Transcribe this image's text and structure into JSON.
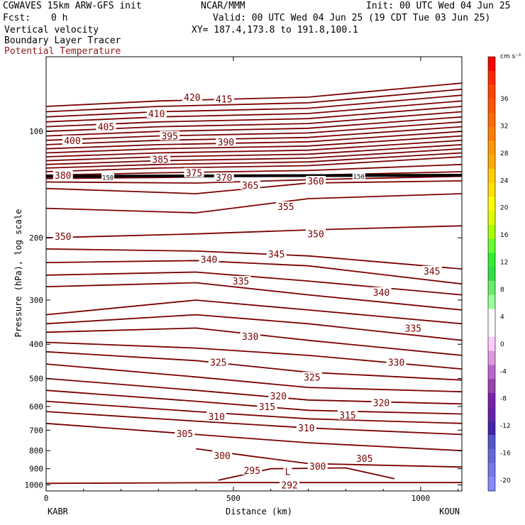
{
  "header": {
    "model": "CGWAVES 15km ARW-GFS init",
    "org": "NCAR/MMM",
    "init": "Init: 00 UTC Wed 04 Jun 25",
    "fcst_label": "Fcst:",
    "fcst_value": "0 h",
    "valid": "Valid: 00 UTC Wed 04 Jun 25 (19 CDT Tue 03 Jun 25)",
    "field1": "Vertical velocity",
    "xy": "XY= 187.4,173.8 to 191.8,100.1",
    "field2": "Boundary Layer Tracer",
    "field3": "Potential Temperature",
    "field3_color": "#8b1a1a"
  },
  "chart_data": {
    "type": "line",
    "title": "",
    "xlabel": "Distance (km)",
    "ylabel": "Pressure (hPa), log scale",
    "x_ticks": [
      "0",
      "500",
      "1000"
    ],
    "x_tick_values": [
      0,
      500,
      1000
    ],
    "xlim": [
      0,
      1110
    ],
    "y_ticks": [
      "100",
      "200",
      "300",
      "400",
      "500",
      "600",
      "700",
      "800",
      "900",
      "1000"
    ],
    "y_tick_values": [
      100,
      200,
      300,
      400,
      500,
      600,
      700,
      800,
      900,
      1000
    ],
    "y_scale": "log",
    "left_station": "KABR",
    "right_station": "KOUN",
    "contour_color": "#7a0000",
    "contour_labels": [
      {
        "text": "420",
        "x": 390,
        "p": 80
      },
      {
        "text": "415",
        "x": 475,
        "p": 81
      },
      {
        "text": "410",
        "x": 295,
        "p": 89
      },
      {
        "text": "405",
        "x": 160,
        "p": 97
      },
      {
        "text": "400",
        "x": 70,
        "p": 106
      },
      {
        "text": "395",
        "x": 330,
        "p": 103
      },
      {
        "text": "390",
        "x": 480,
        "p": 107
      },
      {
        "text": "385",
        "x": 305,
        "p": 120
      },
      {
        "text": "375",
        "x": 395,
        "p": 131
      },
      {
        "text": "380",
        "x": 45,
        "p": 133
      },
      {
        "text": "370",
        "x": 475,
        "p": 135
      },
      {
        "text": "365",
        "x": 545,
        "p": 142
      },
      {
        "text": "360",
        "x": 720,
        "p": 138
      },
      {
        "text": "355",
        "x": 640,
        "p": 163
      },
      {
        "text": "350",
        "x": 45,
        "p": 198
      },
      {
        "text": "340",
        "x": 435,
        "p": 230
      },
      {
        "text": "345",
        "x": 615,
        "p": 222
      },
      {
        "text": "350",
        "x": 720,
        "p": 195
      },
      {
        "text": "335",
        "x": 520,
        "p": 265
      },
      {
        "text": "340",
        "x": 895,
        "p": 285
      },
      {
        "text": "345",
        "x": 1030,
        "p": 248
      },
      {
        "text": "335",
        "x": 980,
        "p": 360
      },
      {
        "text": "330",
        "x": 545,
        "p": 380
      },
      {
        "text": "330",
        "x": 935,
        "p": 450
      },
      {
        "text": "325",
        "x": 460,
        "p": 450
      },
      {
        "text": "325",
        "x": 710,
        "p": 495
      },
      {
        "text": "320",
        "x": 620,
        "p": 560
      },
      {
        "text": "320",
        "x": 895,
        "p": 585
      },
      {
        "text": "315",
        "x": 590,
        "p": 600
      },
      {
        "text": "315",
        "x": 805,
        "p": 635
      },
      {
        "text": "310",
        "x": 455,
        "p": 640
      },
      {
        "text": "310",
        "x": 695,
        "p": 690
      },
      {
        "text": "305",
        "x": 370,
        "p": 715
      },
      {
        "text": "305",
        "x": 850,
        "p": 840
      },
      {
        "text": "300",
        "x": 470,
        "p": 825
      },
      {
        "text": "300",
        "x": 725,
        "p": 885
      },
      {
        "text": "295",
        "x": 550,
        "p": 910
      },
      {
        "text": "292",
        "x": 650,
        "p": 1000
      },
      {
        "text": "L",
        "x": 645,
        "p": 915
      },
      {
        "text": "150",
        "x": 165,
        "p": 134
      },
      {
        "text": "150",
        "x": 835,
        "p": 133
      }
    ],
    "contours": [
      {
        "theta": 420,
        "x": [
          0,
          300,
          700,
          1110
        ],
        "p": [
          85,
          82,
          80,
          73
        ]
      },
      {
        "theta": 418,
        "x": [
          0,
          300,
          700,
          1110
        ],
        "p": [
          88,
          85,
          83,
          76
        ]
      },
      {
        "theta": 416,
        "x": [
          0,
          300,
          700,
          1110
        ],
        "p": [
          91,
          88,
          86,
          79
        ]
      },
      {
        "theta": 414,
        "x": [
          0,
          300,
          700,
          1110
        ],
        "p": [
          94,
          91,
          89,
          82
        ]
      },
      {
        "theta": 412,
        "x": [
          0,
          300,
          700,
          1110
        ],
        "p": [
          97,
          94,
          92,
          85
        ]
      },
      {
        "theta": 410,
        "x": [
          0,
          300,
          700,
          1110
        ],
        "p": [
          100,
          97,
          95,
          88
        ]
      },
      {
        "theta": 408,
        "x": [
          0,
          300,
          700,
          1110
        ],
        "p": [
          103,
          100,
          98,
          91
        ]
      },
      {
        "theta": 406,
        "x": [
          0,
          300,
          700,
          1110
        ],
        "p": [
          106,
          103,
          101,
          94
        ]
      },
      {
        "theta": 404,
        "x": [
          0,
          300,
          700,
          1110
        ],
        "p": [
          109,
          106,
          104,
          97
        ]
      },
      {
        "theta": 402,
        "x": [
          0,
          300,
          700,
          1110
        ],
        "p": [
          112,
          109,
          107,
          100
        ]
      },
      {
        "theta": 400,
        "x": [
          0,
          300,
          700,
          1110
        ],
        "p": [
          115,
          112,
          110,
          103
        ]
      },
      {
        "theta": 398,
        "x": [
          0,
          300,
          700,
          1110
        ],
        "p": [
          118,
          115,
          113,
          106
        ]
      },
      {
        "theta": 396,
        "x": [
          0,
          300,
          700,
          1110
        ],
        "p": [
          121,
          118,
          116,
          109
        ]
      },
      {
        "theta": 394,
        "x": [
          0,
          300,
          700,
          1110
        ],
        "p": [
          124,
          121,
          119,
          112
        ]
      },
      {
        "theta": 392,
        "x": [
          0,
          300,
          700,
          1110
        ],
        "p": [
          127,
          124,
          122,
          115
        ]
      },
      {
        "theta": 390,
        "x": [
          0,
          300,
          700,
          1110
        ],
        "p": [
          130,
          127,
          125,
          118
        ]
      },
      {
        "theta": 385,
        "x": [
          0,
          300,
          700,
          1110
        ],
        "p": [
          133,
          131,
          129,
          124
        ]
      },
      {
        "theta": 380,
        "x": [
          0,
          300,
          700,
          1110
        ],
        "p": [
          136,
          135,
          133,
          130
        ]
      },
      {
        "theta": 370,
        "x": [
          0,
          400,
          700,
          1110
        ],
        "p": [
          139,
          140,
          137,
          134
        ]
      },
      {
        "theta": 360,
        "x": [
          0,
          400,
          700,
          1110
        ],
        "p": [
          145,
          150,
          140,
          138
        ]
      },
      {
        "theta": 355,
        "x": [
          0,
          400,
          700,
          1110
        ],
        "p": [
          165,
          170,
          155,
          150
        ]
      },
      {
        "theta": 350,
        "x": [
          0,
          400,
          700,
          1110
        ],
        "p": [
          200,
          195,
          190,
          185
        ]
      },
      {
        "theta": 345,
        "x": [
          0,
          400,
          700,
          1110
        ],
        "p": [
          215,
          218,
          225,
          245
        ]
      },
      {
        "theta": 342,
        "x": [
          0,
          400,
          700,
          1110
        ],
        "p": [
          235,
          232,
          240,
          270
        ]
      },
      {
        "theta": 340,
        "x": [
          0,
          400,
          700,
          1110
        ],
        "p": [
          255,
          250,
          265,
          290
        ]
      },
      {
        "theta": 337,
        "x": [
          0,
          400,
          700,
          1110
        ],
        "p": [
          275,
          268,
          290,
          320
        ]
      },
      {
        "theta": 335,
        "x": [
          0,
          400,
          700,
          1110
        ],
        "p": [
          330,
          300,
          320,
          350
        ]
      },
      {
        "theta": 333,
        "x": [
          0,
          400,
          700,
          1110
        ],
        "p": [
          350,
          330,
          350,
          390
        ]
      },
      {
        "theta": 330,
        "x": [
          0,
          400,
          700,
          1110
        ],
        "p": [
          370,
          360,
          390,
          430
        ]
      },
      {
        "theta": 327,
        "x": [
          0,
          400,
          700,
          1110
        ],
        "p": [
          395,
          410,
          430,
          470
        ]
      },
      {
        "theta": 325,
        "x": [
          0,
          400,
          700,
          1110
        ],
        "p": [
          420,
          445,
          480,
          505
        ]
      },
      {
        "theta": 322,
        "x": [
          0,
          400,
          700,
          1110
        ],
        "p": [
          455,
          495,
          530,
          545
        ]
      },
      {
        "theta": 320,
        "x": [
          0,
          400,
          700,
          1110
        ],
        "p": [
          500,
          540,
          575,
          590
        ]
      },
      {
        "theta": 317,
        "x": [
          0,
          400,
          700,
          1110
        ],
        "p": [
          540,
          580,
          615,
          630
        ]
      },
      {
        "theta": 315,
        "x": [
          0,
          400,
          700,
          1110
        ],
        "p": [
          580,
          620,
          650,
          670
        ]
      },
      {
        "theta": 310,
        "x": [
          0,
          400,
          700,
          1110
        ],
        "p": [
          620,
          660,
          690,
          720
        ]
      },
      {
        "theta": 305,
        "x": [
          0,
          400,
          700,
          1110
        ],
        "p": [
          670,
          720,
          760,
          800
        ]
      },
      {
        "theta": 300,
        "x": [
          400,
          550,
          700,
          1110
        ],
        "p": [
          790,
          830,
          870,
          890
        ]
      },
      {
        "theta": 295,
        "x": [
          460,
          600,
          800,
          930
        ],
        "p": [
          970,
          900,
          895,
          960
        ]
      },
      {
        "theta": 292,
        "x": [
          0,
          500,
          1110
        ],
        "p": [
          990,
          985,
          985
        ]
      }
    ],
    "boundary_line": {
      "x": [
        0,
        1110
      ],
      "p": [
        134,
        133
      ]
    },
    "colorbar": {
      "unit_label": "cm s⁻¹",
      "labels": [
        "36",
        "32",
        "28",
        "24",
        "20",
        "16",
        "12",
        "8",
        "4",
        "0",
        "-4",
        "-8",
        "-12",
        "-16",
        "-20"
      ],
      "colors": [
        "#ff0000",
        "#ff2a00",
        "#ff4400",
        "#ff5500",
        "#ff6a00",
        "#ff7f00",
        "#ff9900",
        "#ffaa00",
        "#ffcc00",
        "#ffe000",
        "#ffff00",
        "#ddff00",
        "#aaff00",
        "#66ff33",
        "#33ee33",
        "#33dd44",
        "#66ee66",
        "#99ff99",
        "#ffffff",
        "#ffffff",
        "#ffccff",
        "#dd99dd",
        "#bb66cc",
        "#9944aa",
        "#7722aa",
        "#6622aa",
        "#4422aa",
        "#5555cc",
        "#6666dd",
        "#7777ee",
        "#8888ff"
      ]
    }
  }
}
